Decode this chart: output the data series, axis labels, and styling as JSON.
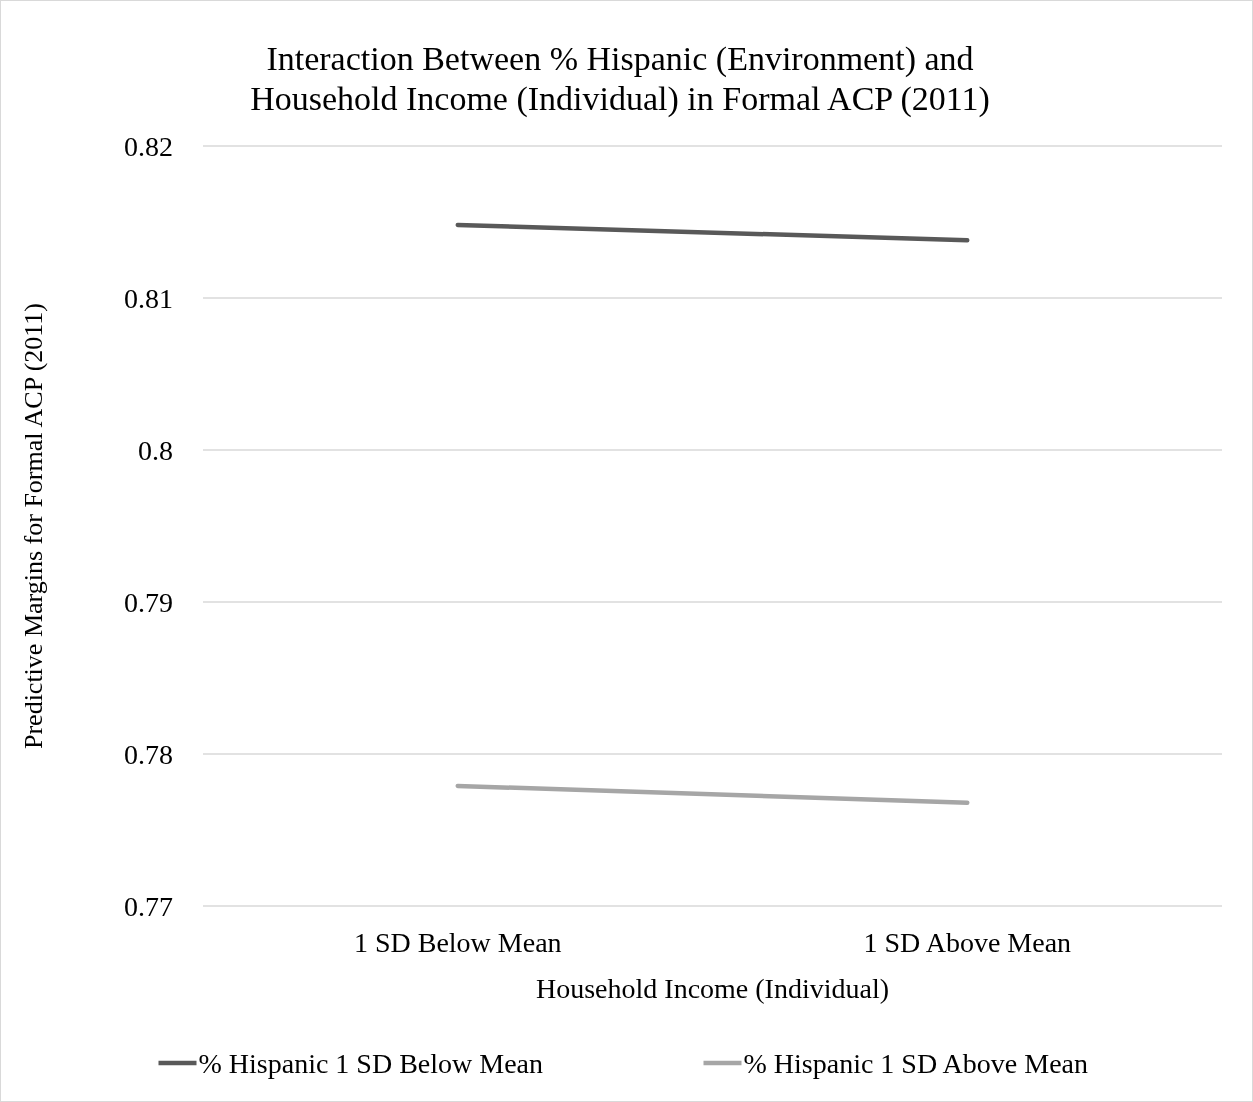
{
  "chart_data": {
    "type": "line",
    "title": "Interaction Between % Hispanic  (Environment) and\nHousehold Income (Individual) in Formal ACP (2011)",
    "xlabel": "Household Income (Individual)",
    "ylabel": "Predictive Margins for Formal ACP (2011)",
    "categories": [
      "1 SD Below Mean",
      "1 SD Above Mean"
    ],
    "series": [
      {
        "name": "% Hispanic 1 SD Below Mean",
        "color": "#595959",
        "values": [
          0.8148,
          0.8138
        ]
      },
      {
        "name": "% Hispanic 1 SD Above Mean",
        "color": "#a6a6a6",
        "values": [
          0.7779,
          0.7768
        ]
      }
    ],
    "ylim": [
      0.77,
      0.82
    ],
    "yticks": [
      0.77,
      0.78,
      0.79,
      0.8,
      0.81,
      0.82
    ],
    "grid": "y",
    "legend": "bottom",
    "marker": "none",
    "line_style": "solid"
  }
}
